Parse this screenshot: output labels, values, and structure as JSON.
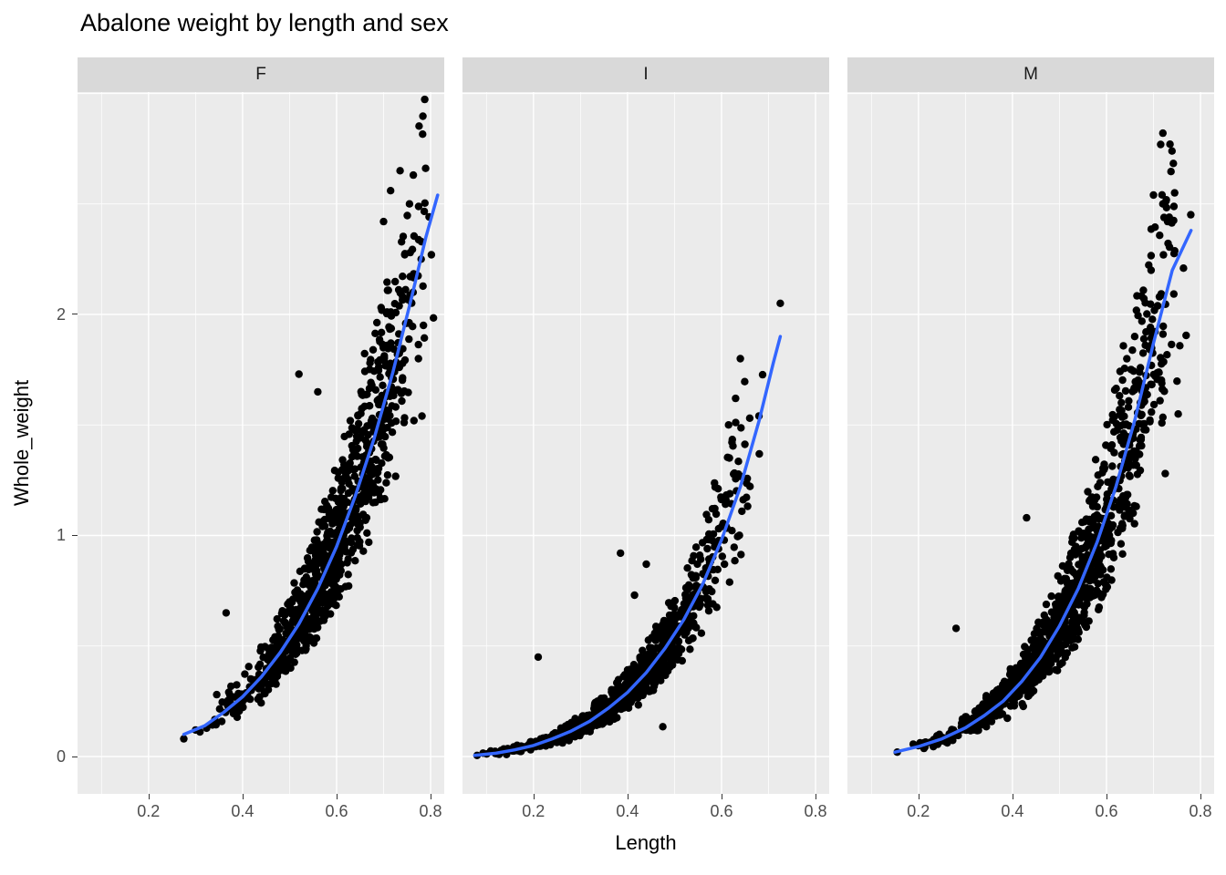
{
  "colors": {
    "panel_background": "#ebebeb",
    "strip_background": "#d9d9d9",
    "grid": "#ffffff",
    "point": "#000000",
    "smooth_line": "#3366ff",
    "tick_text": "#4d4d4d",
    "axis_text": "#000000"
  },
  "chart_data": {
    "type": "scatter",
    "title": "Abalone weight by length and sex",
    "x_axis": {
      "title": "Length",
      "ticks": [
        0.2,
        0.4,
        0.6,
        0.8
      ],
      "major_breaks": [
        0.2,
        0.4,
        0.6,
        0.8
      ],
      "minor_breaks": [
        0.1,
        0.3,
        0.5,
        0.7
      ],
      "domain": [
        0.049,
        0.829
      ]
    },
    "y_axis": {
      "title": "Whole_weight",
      "ticks": [
        0,
        1,
        2
      ],
      "major_breaks": [
        0,
        1,
        2,
        3
      ],
      "minor_breaks": [
        0.5,
        1.5,
        2.5
      ],
      "domain": [
        -0.169,
        3.006
      ]
    },
    "facets": [
      {
        "label": "F",
        "smooth_curve": [
          [
            0.275,
            0.1
          ],
          [
            0.32,
            0.14
          ],
          [
            0.36,
            0.2
          ],
          [
            0.4,
            0.27
          ],
          [
            0.44,
            0.36
          ],
          [
            0.48,
            0.47
          ],
          [
            0.52,
            0.6
          ],
          [
            0.56,
            0.76
          ],
          [
            0.6,
            0.95
          ],
          [
            0.64,
            1.18
          ],
          [
            0.68,
            1.44
          ],
          [
            0.72,
            1.74
          ],
          [
            0.76,
            2.08
          ],
          [
            0.79,
            2.35
          ],
          [
            0.815,
            2.54
          ]
        ],
        "outliers": [
          [
            0.735,
            2.65
          ],
          [
            0.715,
            2.56
          ],
          [
            0.755,
            2.5
          ],
          [
            0.7,
            2.42
          ],
          [
            0.745,
            2.27
          ],
          [
            0.78,
            2.25
          ],
          [
            0.52,
            1.73
          ],
          [
            0.56,
            1.65
          ],
          [
            0.275,
            0.08
          ],
          [
            0.3,
            0.12
          ],
          [
            0.365,
            0.65
          ],
          [
            0.345,
            0.28
          ]
        ],
        "scatter": {
          "n": 950,
          "x_min": 0.275,
          "x_max": 0.815,
          "x_exponent": 0.78,
          "spread": 0.21,
          "seed": 42
        }
      },
      {
        "label": "I",
        "smooth_curve": [
          [
            0.075,
            0.005
          ],
          [
            0.12,
            0.015
          ],
          [
            0.16,
            0.03
          ],
          [
            0.2,
            0.05
          ],
          [
            0.24,
            0.08
          ],
          [
            0.28,
            0.115
          ],
          [
            0.32,
            0.16
          ],
          [
            0.36,
            0.22
          ],
          [
            0.4,
            0.29
          ],
          [
            0.44,
            0.38
          ],
          [
            0.48,
            0.49
          ],
          [
            0.52,
            0.62
          ],
          [
            0.56,
            0.78
          ],
          [
            0.6,
            0.98
          ],
          [
            0.64,
            1.22
          ],
          [
            0.68,
            1.52
          ],
          [
            0.71,
            1.78
          ],
          [
            0.725,
            1.9
          ]
        ],
        "outliers": [
          [
            0.725,
            2.05
          ],
          [
            0.64,
            1.8
          ],
          [
            0.63,
            1.62
          ],
          [
            0.615,
            1.5
          ],
          [
            0.21,
            0.45
          ],
          [
            0.475,
            0.135
          ],
          [
            0.385,
            0.92
          ],
          [
            0.44,
            0.87
          ],
          [
            0.415,
            0.73
          ],
          [
            0.08,
            0.005
          ]
        ],
        "scatter": {
          "n": 950,
          "x_min": 0.075,
          "x_max": 0.7,
          "x_exponent": 0.92,
          "spread": 0.2,
          "seed": 7
        }
      },
      {
        "label": "M",
        "smooth_curve": [
          [
            0.15,
            0.02
          ],
          [
            0.2,
            0.045
          ],
          [
            0.25,
            0.08
          ],
          [
            0.3,
            0.13
          ],
          [
            0.34,
            0.185
          ],
          [
            0.38,
            0.25
          ],
          [
            0.42,
            0.34
          ],
          [
            0.46,
            0.45
          ],
          [
            0.5,
            0.59
          ],
          [
            0.54,
            0.76
          ],
          [
            0.58,
            0.97
          ],
          [
            0.62,
            1.22
          ],
          [
            0.66,
            1.52
          ],
          [
            0.7,
            1.87
          ],
          [
            0.74,
            2.2
          ],
          [
            0.78,
            2.38
          ]
        ],
        "outliers": [
          [
            0.72,
            2.82
          ],
          [
            0.735,
            2.77
          ],
          [
            0.745,
            2.55
          ],
          [
            0.7,
            2.54
          ],
          [
            0.72,
            2.5
          ],
          [
            0.73,
            2.42
          ],
          [
            0.695,
            2.2
          ],
          [
            0.66,
            1.9
          ],
          [
            0.725,
            1.28
          ],
          [
            0.43,
            1.08
          ],
          [
            0.155,
            0.02
          ],
          [
            0.28,
            0.58
          ]
        ],
        "scatter": {
          "n": 1080,
          "x_min": 0.15,
          "x_max": 0.78,
          "x_exponent": 0.75,
          "spread": 0.22,
          "seed": 99
        }
      }
    ]
  }
}
